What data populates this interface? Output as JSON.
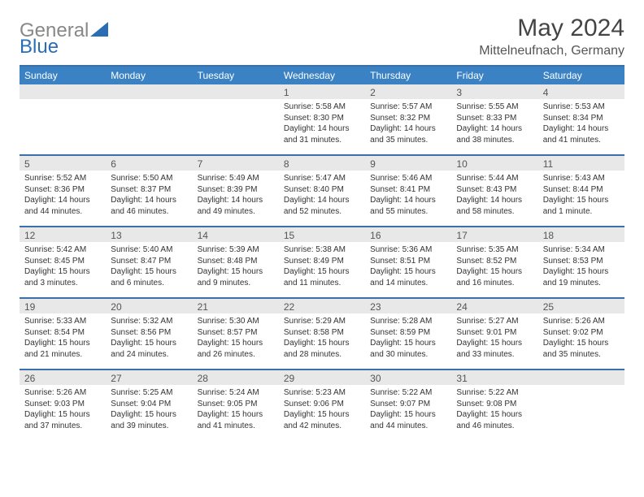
{
  "logo": {
    "text1": "General",
    "text2": "Blue"
  },
  "title": "May 2024",
  "location": "Mittelneufnach, Germany",
  "colors": {
    "header_bg": "#3b82c4",
    "header_text": "#ffffff",
    "rule": "#3b6fa8",
    "daynum_bg": "#e8e8e8",
    "logo_general": "#888888",
    "logo_blue": "#2a6db5",
    "text": "#333333",
    "background": "#ffffff"
  },
  "layout": {
    "columns": 7,
    "fontsize_body": 10,
    "fontsize_header": 12,
    "fontsize_title": 30,
    "fontsize_location": 16
  },
  "weekdays": [
    "Sunday",
    "Monday",
    "Tuesday",
    "Wednesday",
    "Thursday",
    "Friday",
    "Saturday"
  ],
  "weeks": [
    [
      {
        "n": "",
        "sr": "",
        "ss": "",
        "dl1": "",
        "dl2": "",
        "empty": true
      },
      {
        "n": "",
        "sr": "",
        "ss": "",
        "dl1": "",
        "dl2": "",
        "empty": true
      },
      {
        "n": "",
        "sr": "",
        "ss": "",
        "dl1": "",
        "dl2": "",
        "empty": true
      },
      {
        "n": "1",
        "sr": "Sunrise: 5:58 AM",
        "ss": "Sunset: 8:30 PM",
        "dl1": "Daylight: 14 hours",
        "dl2": "and 31 minutes."
      },
      {
        "n": "2",
        "sr": "Sunrise: 5:57 AM",
        "ss": "Sunset: 8:32 PM",
        "dl1": "Daylight: 14 hours",
        "dl2": "and 35 minutes."
      },
      {
        "n": "3",
        "sr": "Sunrise: 5:55 AM",
        "ss": "Sunset: 8:33 PM",
        "dl1": "Daylight: 14 hours",
        "dl2": "and 38 minutes."
      },
      {
        "n": "4",
        "sr": "Sunrise: 5:53 AM",
        "ss": "Sunset: 8:34 PM",
        "dl1": "Daylight: 14 hours",
        "dl2": "and 41 minutes."
      }
    ],
    [
      {
        "n": "5",
        "sr": "Sunrise: 5:52 AM",
        "ss": "Sunset: 8:36 PM",
        "dl1": "Daylight: 14 hours",
        "dl2": "and 44 minutes."
      },
      {
        "n": "6",
        "sr": "Sunrise: 5:50 AM",
        "ss": "Sunset: 8:37 PM",
        "dl1": "Daylight: 14 hours",
        "dl2": "and 46 minutes."
      },
      {
        "n": "7",
        "sr": "Sunrise: 5:49 AM",
        "ss": "Sunset: 8:39 PM",
        "dl1": "Daylight: 14 hours",
        "dl2": "and 49 minutes."
      },
      {
        "n": "8",
        "sr": "Sunrise: 5:47 AM",
        "ss": "Sunset: 8:40 PM",
        "dl1": "Daylight: 14 hours",
        "dl2": "and 52 minutes."
      },
      {
        "n": "9",
        "sr": "Sunrise: 5:46 AM",
        "ss": "Sunset: 8:41 PM",
        "dl1": "Daylight: 14 hours",
        "dl2": "and 55 minutes."
      },
      {
        "n": "10",
        "sr": "Sunrise: 5:44 AM",
        "ss": "Sunset: 8:43 PM",
        "dl1": "Daylight: 14 hours",
        "dl2": "and 58 minutes."
      },
      {
        "n": "11",
        "sr": "Sunrise: 5:43 AM",
        "ss": "Sunset: 8:44 PM",
        "dl1": "Daylight: 15 hours",
        "dl2": "and 1 minute."
      }
    ],
    [
      {
        "n": "12",
        "sr": "Sunrise: 5:42 AM",
        "ss": "Sunset: 8:45 PM",
        "dl1": "Daylight: 15 hours",
        "dl2": "and 3 minutes."
      },
      {
        "n": "13",
        "sr": "Sunrise: 5:40 AM",
        "ss": "Sunset: 8:47 PM",
        "dl1": "Daylight: 15 hours",
        "dl2": "and 6 minutes."
      },
      {
        "n": "14",
        "sr": "Sunrise: 5:39 AM",
        "ss": "Sunset: 8:48 PM",
        "dl1": "Daylight: 15 hours",
        "dl2": "and 9 minutes."
      },
      {
        "n": "15",
        "sr": "Sunrise: 5:38 AM",
        "ss": "Sunset: 8:49 PM",
        "dl1": "Daylight: 15 hours",
        "dl2": "and 11 minutes."
      },
      {
        "n": "16",
        "sr": "Sunrise: 5:36 AM",
        "ss": "Sunset: 8:51 PM",
        "dl1": "Daylight: 15 hours",
        "dl2": "and 14 minutes."
      },
      {
        "n": "17",
        "sr": "Sunrise: 5:35 AM",
        "ss": "Sunset: 8:52 PM",
        "dl1": "Daylight: 15 hours",
        "dl2": "and 16 minutes."
      },
      {
        "n": "18",
        "sr": "Sunrise: 5:34 AM",
        "ss": "Sunset: 8:53 PM",
        "dl1": "Daylight: 15 hours",
        "dl2": "and 19 minutes."
      }
    ],
    [
      {
        "n": "19",
        "sr": "Sunrise: 5:33 AM",
        "ss": "Sunset: 8:54 PM",
        "dl1": "Daylight: 15 hours",
        "dl2": "and 21 minutes."
      },
      {
        "n": "20",
        "sr": "Sunrise: 5:32 AM",
        "ss": "Sunset: 8:56 PM",
        "dl1": "Daylight: 15 hours",
        "dl2": "and 24 minutes."
      },
      {
        "n": "21",
        "sr": "Sunrise: 5:30 AM",
        "ss": "Sunset: 8:57 PM",
        "dl1": "Daylight: 15 hours",
        "dl2": "and 26 minutes."
      },
      {
        "n": "22",
        "sr": "Sunrise: 5:29 AM",
        "ss": "Sunset: 8:58 PM",
        "dl1": "Daylight: 15 hours",
        "dl2": "and 28 minutes."
      },
      {
        "n": "23",
        "sr": "Sunrise: 5:28 AM",
        "ss": "Sunset: 8:59 PM",
        "dl1": "Daylight: 15 hours",
        "dl2": "and 30 minutes."
      },
      {
        "n": "24",
        "sr": "Sunrise: 5:27 AM",
        "ss": "Sunset: 9:01 PM",
        "dl1": "Daylight: 15 hours",
        "dl2": "and 33 minutes."
      },
      {
        "n": "25",
        "sr": "Sunrise: 5:26 AM",
        "ss": "Sunset: 9:02 PM",
        "dl1": "Daylight: 15 hours",
        "dl2": "and 35 minutes."
      }
    ],
    [
      {
        "n": "26",
        "sr": "Sunrise: 5:26 AM",
        "ss": "Sunset: 9:03 PM",
        "dl1": "Daylight: 15 hours",
        "dl2": "and 37 minutes."
      },
      {
        "n": "27",
        "sr": "Sunrise: 5:25 AM",
        "ss": "Sunset: 9:04 PM",
        "dl1": "Daylight: 15 hours",
        "dl2": "and 39 minutes."
      },
      {
        "n": "28",
        "sr": "Sunrise: 5:24 AM",
        "ss": "Sunset: 9:05 PM",
        "dl1": "Daylight: 15 hours",
        "dl2": "and 41 minutes."
      },
      {
        "n": "29",
        "sr": "Sunrise: 5:23 AM",
        "ss": "Sunset: 9:06 PM",
        "dl1": "Daylight: 15 hours",
        "dl2": "and 42 minutes."
      },
      {
        "n": "30",
        "sr": "Sunrise: 5:22 AM",
        "ss": "Sunset: 9:07 PM",
        "dl1": "Daylight: 15 hours",
        "dl2": "and 44 minutes."
      },
      {
        "n": "31",
        "sr": "Sunrise: 5:22 AM",
        "ss": "Sunset: 9:08 PM",
        "dl1": "Daylight: 15 hours",
        "dl2": "and 46 minutes."
      },
      {
        "n": "",
        "sr": "",
        "ss": "",
        "dl1": "",
        "dl2": "",
        "empty": true
      }
    ]
  ]
}
